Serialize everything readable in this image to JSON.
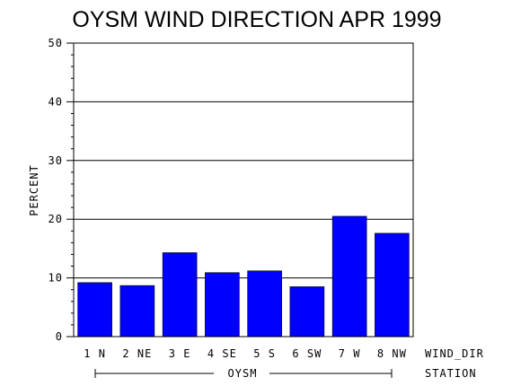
{
  "chart_data": {
    "type": "bar",
    "title": "OYSM WIND DIRECTION APR 1999",
    "ylabel": "PERCENT",
    "xlabel": "WIND_DIR",
    "group_axis_label": "STATION",
    "group_name": "OYSM",
    "categories": [
      "1 N",
      "2 NE",
      "3 E",
      "4 SE",
      "5 S",
      "6 SW",
      "7 W",
      "8 NW"
    ],
    "values": [
      9.2,
      8.7,
      14.3,
      10.9,
      11.2,
      8.5,
      20.5,
      17.6
    ],
    "ylim": [
      0,
      50
    ],
    "yticks": [
      "0",
      "10",
      "20",
      "30",
      "40",
      "50"
    ],
    "grid": true,
    "colors": {
      "bar": "#0000ff",
      "axis": "#000000",
      "background": "#ffffff"
    }
  }
}
